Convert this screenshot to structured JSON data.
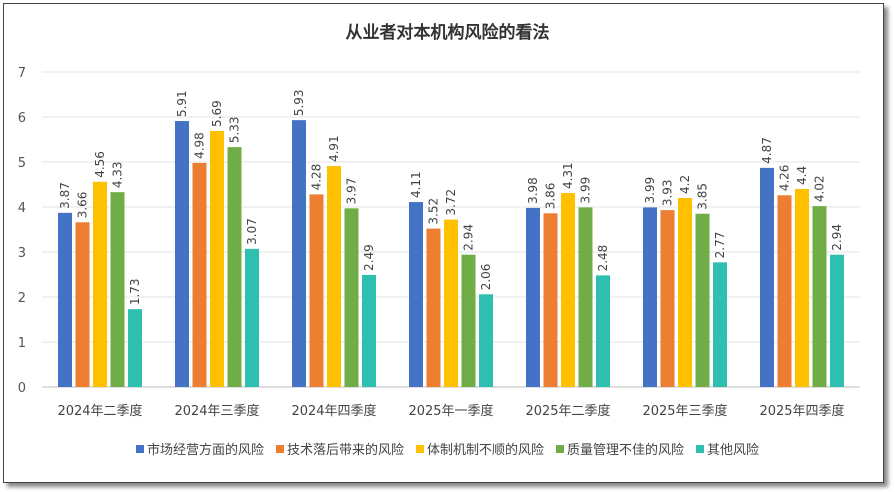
{
  "chart_data": {
    "type": "bar",
    "title": "从业者对本机构风险的看法",
    "categories": [
      "2024年二季度",
      "2024年三季度",
      "2024年四季度",
      "2025年一季度",
      "2025年二季度",
      "2025年三季度",
      "2025年四季度"
    ],
    "ylim": [
      0,
      7
    ],
    "yticks": [
      "0",
      "1",
      "2",
      "3",
      "4",
      "5",
      "6",
      "7"
    ],
    "grid": true,
    "legend_position": "bottom",
    "series": [
      {
        "name": "市场经营方面的风险",
        "color": "#4472C4",
        "values": [
          3.87,
          5.91,
          5.93,
          4.11,
          3.98,
          3.99,
          4.87
        ]
      },
      {
        "name": "技术落后带来的风险",
        "color": "#ED7D31",
        "values": [
          3.66,
          4.98,
          4.28,
          3.52,
          3.86,
          3.93,
          4.26
        ]
      },
      {
        "name": "体制机制不顺的风险",
        "color": "#FFC000",
        "values": [
          4.56,
          5.69,
          4.91,
          3.72,
          4.31,
          4.2,
          4.4
        ]
      },
      {
        "name": "质量管理不佳的风险",
        "color": "#70AD47",
        "values": [
          4.33,
          5.33,
          3.97,
          2.94,
          3.99,
          3.85,
          4.02
        ]
      },
      {
        "name": "其他风险",
        "color": "#2EBFB0",
        "values": [
          1.73,
          3.07,
          2.49,
          2.06,
          2.48,
          2.77,
          2.94
        ]
      }
    ]
  }
}
